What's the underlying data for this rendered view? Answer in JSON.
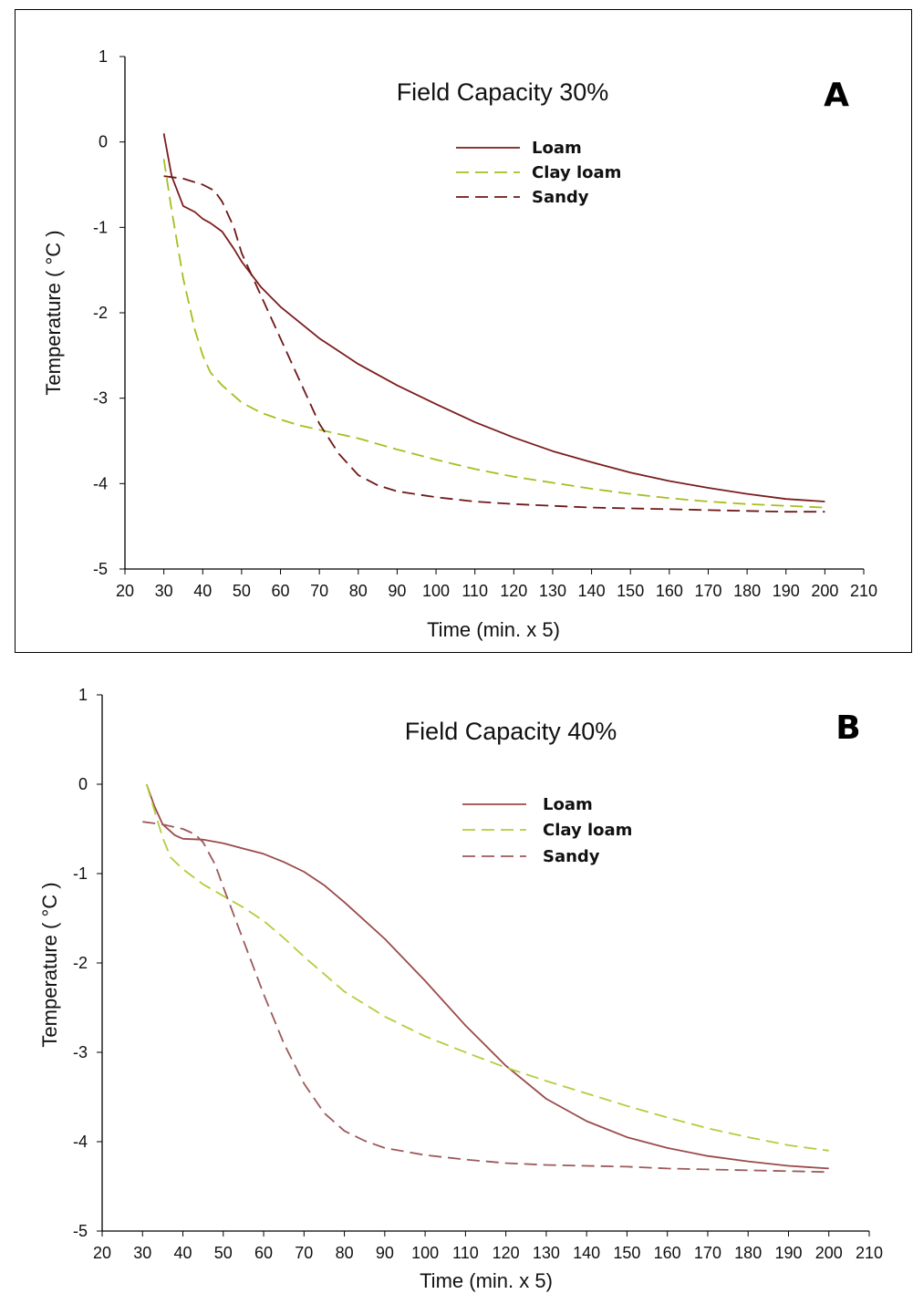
{
  "chart_data": [
    {
      "type": "line",
      "panel_letter": "A",
      "title": "Field Capacity 30%",
      "xlabel": "Time (min. x 5)",
      "ylabel": "Temperature ( °C )",
      "xlim": [
        20,
        210
      ],
      "ylim": [
        -5,
        1
      ],
      "xticks": [
        20,
        30,
        40,
        50,
        60,
        70,
        80,
        90,
        100,
        110,
        120,
        130,
        140,
        150,
        160,
        170,
        180,
        190,
        200,
        210
      ],
      "yticks": [
        1,
        0,
        -1,
        -2,
        -3,
        -4,
        -5
      ],
      "grid": false,
      "legend_position": "top-center",
      "series": [
        {
          "name": "Loam",
          "color": "#7b1c1c",
          "style": "solid",
          "x": [
            30,
            32,
            35,
            38,
            40,
            42,
            45,
            48,
            50,
            55,
            60,
            70,
            80,
            90,
            100,
            110,
            120,
            130,
            140,
            150,
            160,
            170,
            180,
            190,
            200
          ],
          "y": [
            0.1,
            -0.4,
            -0.75,
            -0.82,
            -0.9,
            -0.95,
            -1.05,
            -1.25,
            -1.4,
            -1.7,
            -1.93,
            -2.3,
            -2.6,
            -2.85,
            -3.07,
            -3.28,
            -3.46,
            -3.62,
            -3.75,
            -3.87,
            -3.97,
            -4.05,
            -4.12,
            -4.18,
            -4.21
          ]
        },
        {
          "name": "Clay loam",
          "color": "#a7be1e",
          "style": "dashed",
          "x": [
            30,
            32,
            35,
            38,
            40,
            42,
            45,
            50,
            55,
            60,
            65,
            70,
            75,
            80,
            90,
            100,
            110,
            120,
            130,
            140,
            150,
            160,
            170,
            180,
            190,
            200
          ],
          "y": [
            -0.2,
            -0.8,
            -1.6,
            -2.2,
            -2.5,
            -2.7,
            -2.85,
            -3.05,
            -3.17,
            -3.25,
            -3.32,
            -3.37,
            -3.42,
            -3.47,
            -3.6,
            -3.72,
            -3.83,
            -3.92,
            -3.99,
            -4.06,
            -4.12,
            -4.17,
            -4.21,
            -4.24,
            -4.26,
            -4.28
          ]
        },
        {
          "name": "Sandy",
          "color": "#6e1818",
          "style": "dashed",
          "x": [
            30,
            35,
            40,
            43,
            45,
            48,
            50,
            55,
            60,
            65,
            70,
            75,
            80,
            85,
            90,
            100,
            110,
            120,
            130,
            140,
            150,
            160,
            170,
            180,
            190,
            200
          ],
          "y": [
            -0.4,
            -0.43,
            -0.5,
            -0.57,
            -0.7,
            -1.0,
            -1.3,
            -1.8,
            -2.3,
            -2.8,
            -3.3,
            -3.65,
            -3.9,
            -4.02,
            -4.09,
            -4.16,
            -4.21,
            -4.24,
            -4.26,
            -4.28,
            -4.29,
            -4.3,
            -4.31,
            -4.32,
            -4.33,
            -4.33
          ]
        }
      ]
    },
    {
      "type": "line",
      "panel_letter": "B",
      "title": "Field Capacity 40%",
      "xlabel": "Time (min. x 5)",
      "ylabel": "Temperature ( °C )",
      "xlim": [
        20,
        210
      ],
      "ylim": [
        -5,
        1
      ],
      "xticks": [
        20,
        30,
        40,
        50,
        60,
        70,
        80,
        90,
        100,
        110,
        120,
        130,
        140,
        150,
        160,
        170,
        180,
        190,
        200,
        210
      ],
      "yticks": [
        1,
        0,
        -1,
        -2,
        -3,
        -4,
        -5
      ],
      "grid": false,
      "legend_position": "top-center",
      "series": [
        {
          "name": "Loam",
          "color": "#9b4a4a",
          "style": "solid",
          "x": [
            31,
            33,
            35,
            38,
            40,
            45,
            50,
            55,
            60,
            65,
            70,
            75,
            80,
            90,
            100,
            110,
            120,
            130,
            140,
            150,
            160,
            170,
            180,
            190,
            200
          ],
          "y": [
            0.0,
            -0.25,
            -0.45,
            -0.57,
            -0.61,
            -0.62,
            -0.66,
            -0.72,
            -0.78,
            -0.87,
            -0.98,
            -1.13,
            -1.32,
            -1.73,
            -2.2,
            -2.7,
            -3.15,
            -3.52,
            -3.77,
            -3.95,
            -4.07,
            -4.16,
            -4.22,
            -4.27,
            -4.3
          ]
        },
        {
          "name": "Clay loam",
          "color": "#b5cc3c",
          "style": "dashed",
          "x": [
            31,
            33,
            35,
            37,
            40,
            45,
            50,
            55,
            60,
            65,
            70,
            80,
            90,
            100,
            110,
            120,
            130,
            140,
            150,
            160,
            170,
            180,
            190,
            200
          ],
          "y": [
            0.0,
            -0.3,
            -0.6,
            -0.82,
            -0.95,
            -1.12,
            -1.25,
            -1.38,
            -1.53,
            -1.72,
            -1.93,
            -2.32,
            -2.6,
            -2.82,
            -3.0,
            -3.17,
            -3.32,
            -3.46,
            -3.6,
            -3.73,
            -3.85,
            -3.95,
            -4.04,
            -4.1
          ]
        },
        {
          "name": "Sandy",
          "color": "#9b5a5a",
          "style": "dashed",
          "x": [
            30,
            35,
            40,
            43,
            45,
            48,
            50,
            55,
            60,
            65,
            70,
            75,
            80,
            85,
            90,
            100,
            110,
            120,
            130,
            140,
            150,
            160,
            170,
            180,
            190,
            200
          ],
          "y": [
            -0.42,
            -0.45,
            -0.5,
            -0.56,
            -0.65,
            -0.9,
            -1.15,
            -1.75,
            -2.35,
            -2.9,
            -3.35,
            -3.68,
            -3.88,
            -3.99,
            -4.07,
            -4.15,
            -4.2,
            -4.24,
            -4.26,
            -4.27,
            -4.28,
            -4.3,
            -4.31,
            -4.32,
            -4.33,
            -4.34
          ]
        }
      ]
    }
  ]
}
